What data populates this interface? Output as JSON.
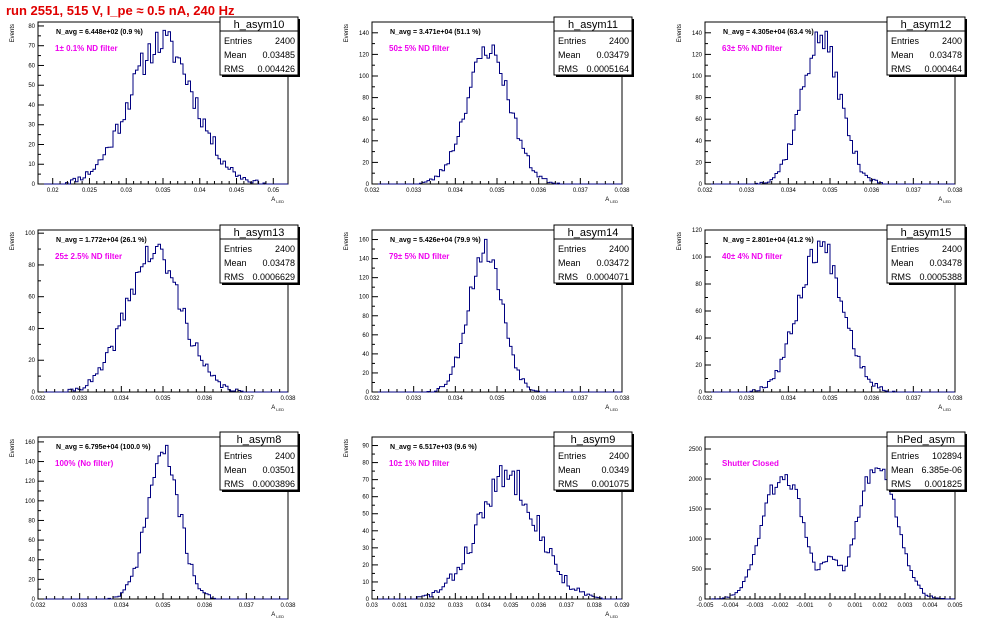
{
  "page_title": "run 2551,   515 V, I_pe ≈ 0.5 nA, 240 Hz",
  "colors": {
    "title": "#e00000",
    "annotation": "#ee00ee",
    "hist": "#000080",
    "frame": "#000000"
  },
  "chart_data": [
    {
      "type": "histogram",
      "name": "h_asym10",
      "entries": "2400",
      "mean": "0.03485",
      "rms": "0.004426",
      "navg": "N_avg = 6.448e+02 (0.9 %)",
      "filter": "1± 0.1% ND filter",
      "xlabel": "A_{LED}",
      "ylabel": "Events",
      "xlim": [
        0.018,
        0.052
      ],
      "ylim": [
        0,
        82
      ],
      "xticks": [
        0.02,
        0.025,
        0.03,
        0.035,
        0.04,
        0.045,
        0.05
      ],
      "xticklabels": [
        "0.02",
        "0.025",
        "0.03",
        "0.035",
        "0.04",
        "0.045",
        "0.05"
      ],
      "yticks": [
        0,
        10,
        20,
        30,
        40,
        50,
        60,
        70,
        80
      ],
      "dist": {
        "mean": 0.03485,
        "sigma": 0.004426,
        "peak": 72,
        "noise": 8,
        "seed": 11
      }
    },
    {
      "type": "histogram",
      "name": "h_asym11",
      "entries": "2400",
      "mean": "0.03479",
      "rms": "0.0005164",
      "navg": "N_avg = 3.471e+04 (51.1 %)",
      "filter": "50± 5% ND filter",
      "xlabel": "A_{LED}",
      "ylabel": "Events",
      "xlim": [
        0.032,
        0.038
      ],
      "ylim": [
        0,
        150
      ],
      "xticks": [
        0.032,
        0.033,
        0.034,
        0.035,
        0.036,
        0.037,
        0.038
      ],
      "xticklabels": [
        "0.032",
        "0.033",
        "0.034",
        "0.035",
        "0.036",
        "0.037",
        "0.038"
      ],
      "yticks": [
        0,
        20,
        40,
        60,
        80,
        100,
        120,
        140
      ],
      "dist": {
        "mean": 0.03479,
        "sigma": 0.0005164,
        "peak": 125,
        "noise": 10,
        "seed": 23
      }
    },
    {
      "type": "histogram",
      "name": "h_asym12",
      "entries": "2400",
      "mean": "0.03478",
      "rms": "0.000464",
      "navg": "N_avg = 4.305e+04 (63.4 %)",
      "filter": "63± 5% ND filter",
      "xlabel": "A_{LED}",
      "ylabel": "Events",
      "xlim": [
        0.032,
        0.038
      ],
      "ylim": [
        0,
        150
      ],
      "xticks": [
        0.032,
        0.033,
        0.034,
        0.035,
        0.036,
        0.037,
        0.038
      ],
      "xticklabels": [
        "0.032",
        "0.033",
        "0.034",
        "0.035",
        "0.036",
        "0.037",
        "0.038"
      ],
      "yticks": [
        0,
        20,
        40,
        60,
        80,
        100,
        120,
        140
      ],
      "dist": {
        "mean": 0.03478,
        "sigma": 0.000464,
        "peak": 135,
        "noise": 12,
        "seed": 37
      }
    },
    {
      "type": "histogram",
      "name": "h_asym13",
      "entries": "2400",
      "mean": "0.03478",
      "rms": "0.0006629",
      "navg": "N_avg = 1.772e+04 (26.1 %)",
      "filter": "25± 2.5% ND filter",
      "xlabel": "A_{LED}",
      "ylabel": "Events",
      "xlim": [
        0.032,
        0.038
      ],
      "ylim": [
        0,
        102
      ],
      "xticks": [
        0.032,
        0.033,
        0.034,
        0.035,
        0.036,
        0.037,
        0.038
      ],
      "xticklabels": [
        "0.032",
        "0.033",
        "0.034",
        "0.035",
        "0.036",
        "0.037",
        "0.038"
      ],
      "yticks": [
        0,
        20,
        40,
        60,
        80,
        100
      ],
      "dist": {
        "mean": 0.03478,
        "sigma": 0.0006629,
        "peak": 88,
        "noise": 9,
        "seed": 41
      }
    },
    {
      "type": "histogram",
      "name": "h_asym14",
      "entries": "2400",
      "mean": "0.03472",
      "rms": "0.0004071",
      "navg": "N_avg = 5.426e+04 (79.9 %)",
      "filter": "79± 5% ND filter",
      "xlabel": "A_{LED}",
      "ylabel": "Events",
      "xlim": [
        0.032,
        0.038
      ],
      "ylim": [
        0,
        170
      ],
      "xticks": [
        0.032,
        0.033,
        0.034,
        0.035,
        0.036,
        0.037,
        0.038
      ],
      "xticklabels": [
        "0.032",
        "0.033",
        "0.034",
        "0.035",
        "0.036",
        "0.037",
        "0.038"
      ],
      "yticks": [
        0,
        20,
        40,
        60,
        80,
        100,
        120,
        140,
        160
      ],
      "dist": {
        "mean": 0.03472,
        "sigma": 0.0004071,
        "peak": 150,
        "noise": 12,
        "seed": 53
      }
    },
    {
      "type": "histogram",
      "name": "h_asym15",
      "entries": "2400",
      "mean": "0.03478",
      "rms": "0.0005388",
      "navg": "N_avg = 2.801e+04 (41.2 %)",
      "filter": "40± 4% ND filter",
      "xlabel": "A_{LED}",
      "ylabel": "Events",
      "xlim": [
        0.032,
        0.038
      ],
      "ylim": [
        0,
        120
      ],
      "xticks": [
        0.032,
        0.033,
        0.034,
        0.035,
        0.036,
        0.037,
        0.038
      ],
      "xticklabels": [
        "0.032",
        "0.033",
        "0.034",
        "0.035",
        "0.036",
        "0.037",
        "0.038"
      ],
      "yticks": [
        0,
        20,
        40,
        60,
        80,
        100,
        120
      ],
      "dist": {
        "mean": 0.03478,
        "sigma": 0.0005388,
        "peak": 108,
        "noise": 10,
        "seed": 67
      }
    },
    {
      "type": "histogram",
      "name": "h_asym8",
      "entries": "2400",
      "mean": "0.03501",
      "rms": "0.0003896",
      "navg": "N_avg = 6.795e+04 (100.0 %)",
      "filter": "100% (No filter)",
      "xlabel": "A_{LED}",
      "ylabel": "Events",
      "xlim": [
        0.032,
        0.038
      ],
      "ylim": [
        0,
        165
      ],
      "xticks": [
        0.032,
        0.033,
        0.034,
        0.035,
        0.036,
        0.037,
        0.038
      ],
      "xticklabels": [
        "0.032",
        "0.033",
        "0.034",
        "0.035",
        "0.036",
        "0.037",
        "0.038"
      ],
      "yticks": [
        0,
        20,
        40,
        60,
        80,
        100,
        120,
        140,
        160
      ],
      "dist": {
        "mean": 0.03501,
        "sigma": 0.0003896,
        "peak": 148,
        "noise": 12,
        "seed": 71
      }
    },
    {
      "type": "histogram",
      "name": "h_asym9",
      "entries": "2400",
      "mean": "0.0349",
      "rms": "0.001075",
      "navg": "N_avg = 6.517e+03 (9.6 %)",
      "filter": "10± 1% ND filter",
      "xlabel": "A_{LED}",
      "ylabel": "Events",
      "xlim": [
        0.03,
        0.039
      ],
      "ylim": [
        0,
        95
      ],
      "xticks": [
        0.03,
        0.031,
        0.032,
        0.033,
        0.034,
        0.035,
        0.036,
        0.037,
        0.038,
        0.039
      ],
      "xticklabels": [
        "0.03",
        "0.031",
        "0.032",
        "0.033",
        "0.034",
        "0.035",
        "0.036",
        "0.037",
        "0.038",
        "0.039"
      ],
      "yticks": [
        0,
        10,
        20,
        30,
        40,
        50,
        60,
        70,
        80,
        90
      ],
      "dist": {
        "mean": 0.0349,
        "sigma": 0.001075,
        "peak": 72,
        "noise": 9,
        "seed": 83
      }
    },
    {
      "type": "histogram",
      "name": "hPed_asym",
      "entries": "102894",
      "mean": "6.385e-06",
      "rms": "0.001825",
      "navg": "",
      "filter": "Shutter Closed",
      "xlabel": "",
      "ylabel": "",
      "xlim": [
        -0.005,
        0.005
      ],
      "ylim": [
        0,
        2700
      ],
      "xticks": [
        -0.005,
        -0.004,
        -0.003,
        -0.002,
        -0.001,
        0,
        0.001,
        0.002,
        0.003,
        0.004,
        0.005
      ],
      "xticklabels": [
        "-0.005",
        "-0.004",
        "-0.003",
        "-0.002",
        "-0.001",
        "0",
        "0.001",
        "0.002",
        "0.003",
        "0.004",
        "0.005"
      ],
      "yticks": [
        0,
        500,
        1000,
        1500,
        2000,
        2500
      ],
      "dist": {
        "bimodal": true,
        "mean": -0.0019,
        "mean2": 0.0019,
        "sigma": 0.00075,
        "peak": 2350,
        "peak2": 2350,
        "dip": 650,
        "noise": 90,
        "seed": 97
      }
    }
  ]
}
